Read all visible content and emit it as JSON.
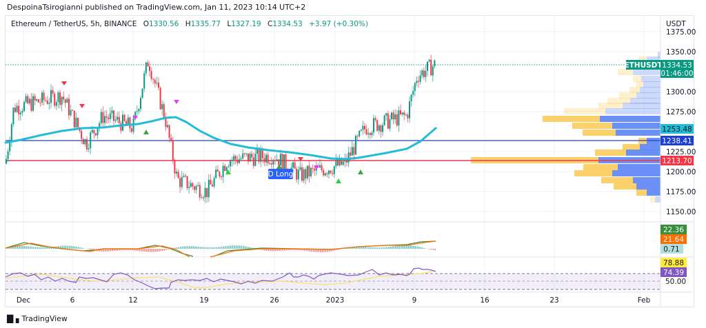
{
  "header": {
    "publisher_line": "DespoinaTsirogianni published on TradingView.com, Jan 11, 2023 10:14 UTC+2"
  },
  "legend": {
    "symbol_line": "Ethereum / TetherUS, 5h, BINANCE",
    "open_label": "O",
    "open": "1330.56",
    "high_label": "H",
    "high": "1335.77",
    "low_label": "L",
    "low": "1327.19",
    "close_label": "C",
    "close": "1334.53",
    "change": "+3.97 (+0.30%)"
  },
  "price_axis": {
    "currency": "USDT",
    "ticks": [
      "1375.00",
      "1350.00",
      "1300.00",
      "1275.00",
      "1225.00",
      "1200.00",
      "1175.00",
      "1150.00"
    ],
    "tags": {
      "symbol": "ETHUSDT",
      "last_price": "1334.53",
      "countdown": "01:46:00",
      "ema": "1253.48",
      "blue_line": "1238.41",
      "red_line": "1213.70"
    }
  },
  "macd_axis": {
    "macd": "22.36",
    "signal": "21.64",
    "hist": "0.71"
  },
  "rsi_axis": {
    "rsi_ma": "78.88",
    "rsi": "74.39",
    "mid": "50.00"
  },
  "time_axis": {
    "ticks": [
      "Dec",
      "6",
      "12",
      "19",
      "26",
      "2023",
      "9",
      "16",
      "23",
      "Feb"
    ]
  },
  "signals": {
    "d_long_label": "D Long"
  },
  "footer": {
    "brand": "TradingView"
  },
  "colors": {
    "up": "#089981",
    "down": "#f23645",
    "ema": "#22bcd6",
    "blue_line": "#1e3fd6",
    "red_line": "#f23645",
    "vp_up": "#f9cc5a",
    "vp_down": "#5b85f5"
  },
  "chart_data": {
    "type": "candlestick",
    "title": "Ethereum / TetherUS, 5h, BINANCE",
    "ylabel": "USDT",
    "ylim": [
      1140,
      1380
    ],
    "x_ticks": [
      "Dec",
      "6",
      "12",
      "19",
      "26",
      "2023",
      "9",
      "16",
      "23",
      "Feb"
    ],
    "last": {
      "open": 1330.56,
      "high": 1335.77,
      "low": 1327.19,
      "close": 1334.53,
      "change": 3.97,
      "change_pct": 0.3
    },
    "horizontal_lines": [
      {
        "name": "support/resistance blue",
        "price": 1238.41
      },
      {
        "name": "support/resistance red",
        "price": 1213.7
      }
    ],
    "ema_last": 1253.48,
    "price_path_approx": [
      {
        "x": "Dec 1",
        "price": 1210
      },
      {
        "x": "Dec 2",
        "price": 1280
      },
      {
        "x": "Dec 5",
        "price": 1295
      },
      {
        "x": "Dec 7",
        "price": 1235
      },
      {
        "x": "Dec 9",
        "price": 1270
      },
      {
        "x": "Dec 12",
        "price": 1255
      },
      {
        "x": "Dec 13",
        "price": 1340
      },
      {
        "x": "Dec 15",
        "price": 1265
      },
      {
        "x": "Dec 16",
        "price": 1190
      },
      {
        "x": "Dec 19",
        "price": 1175
      },
      {
        "x": "Dec 21",
        "price": 1215
      },
      {
        "x": "Dec 26",
        "price": 1220
      },
      {
        "x": "Dec 28",
        "price": 1195
      },
      {
        "x": "Jan 2",
        "price": 1210
      },
      {
        "x": "Jan 4",
        "price": 1255
      },
      {
        "x": "Jan 7",
        "price": 1265
      },
      {
        "x": "Jan 8",
        "price": 1270
      },
      {
        "x": "Jan 9",
        "price": 1320
      },
      {
        "x": "Jan 11",
        "price": 1334.53
      }
    ],
    "macd": {
      "macd": 22.36,
      "signal": 21.64,
      "histogram": 0.71
    },
    "rsi": {
      "rsi": 74.39,
      "rsi_ma": 78.88,
      "bands": [
        70,
        50,
        30
      ]
    }
  }
}
